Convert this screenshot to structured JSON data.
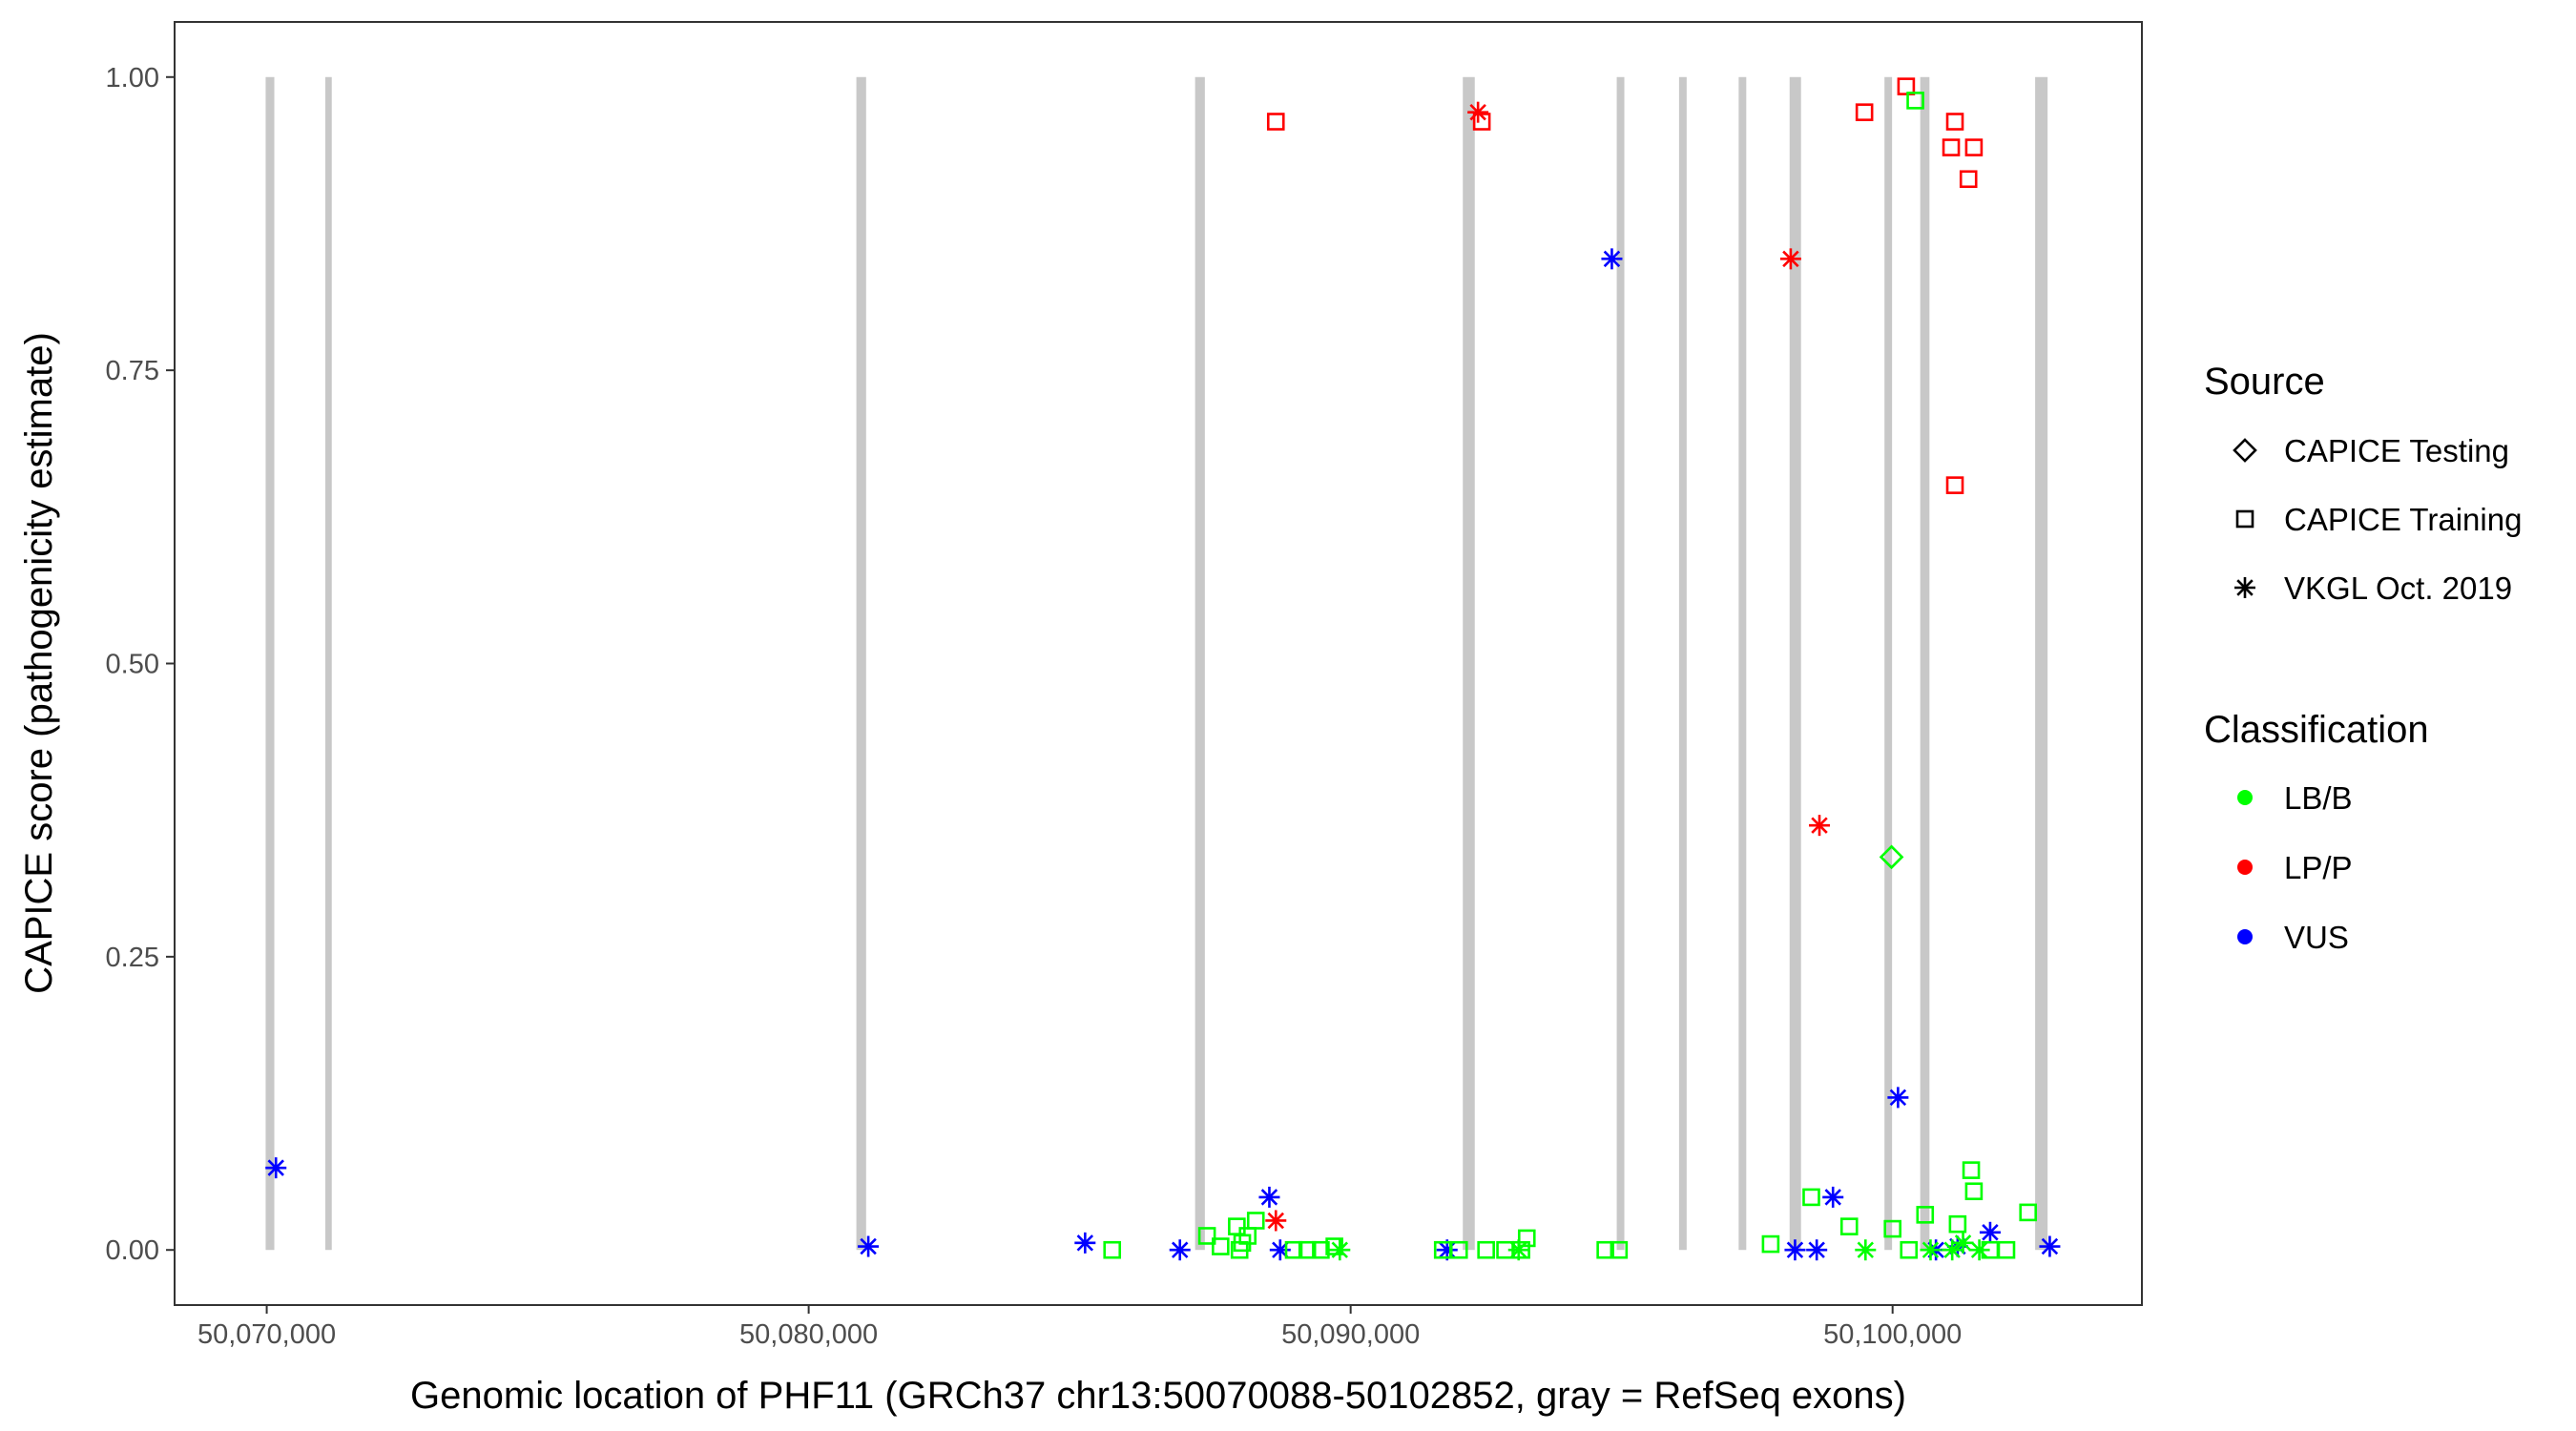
{
  "chart_data": {
    "type": "scatter",
    "title": "",
    "xlabel": "Genomic location of PHF11 (GRCh37 chr13:50070088-50102852, gray = RefSeq exons)",
    "ylabel": "CAPICE score (pathogenicity estimate)",
    "xlim": [
      50068300,
      50104600
    ],
    "ylim": [
      -0.047,
      1.047
    ],
    "x_ticks": [
      50070000,
      50080000,
      50090000,
      50100000
    ],
    "x_tick_labels": [
      "50,070,000",
      "50,080,000",
      "50,090,000",
      "50,100,000"
    ],
    "y_ticks": [
      0,
      0.25,
      0.5,
      0.75,
      1.0
    ],
    "y_tick_labels": [
      "0.00",
      "0.25",
      "0.50",
      "0.75",
      "1.00"
    ],
    "grid": false,
    "exons": [
      {
        "start": 50069980,
        "end": 50070140
      },
      {
        "start": 50071080,
        "end": 50071200
      },
      {
        "start": 50080880,
        "end": 50081060
      },
      {
        "start": 50087130,
        "end": 50087310
      },
      {
        "start": 50092070,
        "end": 50092290
      },
      {
        "start": 50094910,
        "end": 50095050
      },
      {
        "start": 50096060,
        "end": 50096200
      },
      {
        "start": 50097160,
        "end": 50097300
      },
      {
        "start": 50098100,
        "end": 50098310
      },
      {
        "start": 50099850,
        "end": 50099990
      },
      {
        "start": 50100510,
        "end": 50100680
      },
      {
        "start": 50102630,
        "end": 50102860
      }
    ],
    "legend": {
      "placement": "right",
      "source_title": "Source",
      "classification_title": "Classification",
      "source": [
        {
          "name": "CAPICE Testing",
          "shape": "diamond"
        },
        {
          "name": "CAPICE Training",
          "shape": "square"
        },
        {
          "name": "VKGL Oct. 2019",
          "shape": "asterisk"
        }
      ],
      "classification": [
        {
          "name": "LB/B",
          "color": "#00ff00"
        },
        {
          "name": "LP/P",
          "color": "#ff0000"
        },
        {
          "name": "VUS",
          "color": "#0000ff"
        }
      ]
    },
    "series": [
      {
        "source": "CAPICE Training",
        "classification": "LP/P",
        "shape": "square",
        "color": "#ff0000",
        "points": [
          [
            50088620,
            0.962
          ],
          [
            50092420,
            0.962
          ],
          [
            50099480,
            0.97
          ],
          [
            50100250,
            0.992
          ],
          [
            50101150,
            0.962
          ],
          [
            50101080,
            0.94
          ],
          [
            50101500,
            0.94
          ],
          [
            50101400,
            0.913
          ],
          [
            50101150,
            0.652
          ]
        ]
      },
      {
        "source": "VKGL Oct. 2019",
        "classification": "LP/P",
        "shape": "asterisk",
        "color": "#ff0000",
        "points": [
          [
            50092350,
            0.97
          ],
          [
            50098120,
            0.845
          ],
          [
            50098650,
            0.362
          ],
          [
            50088620,
            0.025
          ]
        ]
      },
      {
        "source": "VKGL Oct. 2019",
        "classification": "VUS",
        "shape": "asterisk",
        "color": "#0000ff",
        "points": [
          [
            50070170,
            0.07
          ],
          [
            50081100,
            0.003
          ],
          [
            50085100,
            0.006
          ],
          [
            50086850,
            0.0
          ],
          [
            50088500,
            0.045
          ],
          [
            50088700,
            0.0
          ],
          [
            50094820,
            0.845
          ],
          [
            50091780,
            0.0
          ],
          [
            50098200,
            0.0
          ],
          [
            50098600,
            0.0
          ],
          [
            50098900,
            0.045
          ],
          [
            50100100,
            0.13
          ],
          [
            50100800,
            0.0
          ],
          [
            50101200,
            0.003
          ],
          [
            50101800,
            0.015
          ],
          [
            50102900,
            0.003
          ]
        ]
      },
      {
        "source": "CAPICE Training",
        "classification": "LB/B",
        "shape": "square",
        "color": "#00ff00",
        "points": [
          [
            50100420,
            0.98
          ],
          [
            50085600,
            0.0
          ],
          [
            50087350,
            0.012
          ],
          [
            50087600,
            0.003
          ],
          [
            50087900,
            0.02
          ],
          [
            50088000,
            0.006
          ],
          [
            50088100,
            0.012
          ],
          [
            50087950,
            0.0
          ],
          [
            50088250,
            0.025
          ],
          [
            50088950,
            0.0
          ],
          [
            50089200,
            0.0
          ],
          [
            50089450,
            0.0
          ],
          [
            50089700,
            0.003
          ],
          [
            50091700,
            0.0
          ],
          [
            50092000,
            0.0
          ],
          [
            50092500,
            0.0
          ],
          [
            50092850,
            0.0
          ],
          [
            50093250,
            0.01
          ],
          [
            50093150,
            0.0
          ],
          [
            50094700,
            0.0
          ],
          [
            50094950,
            0.0
          ],
          [
            50097750,
            0.005
          ],
          [
            50098500,
            0.045
          ],
          [
            50099200,
            0.02
          ],
          [
            50100000,
            0.018
          ],
          [
            50100300,
            0.0
          ],
          [
            50100600,
            0.03
          ],
          [
            50101200,
            0.022
          ],
          [
            50101450,
            0.068
          ],
          [
            50101500,
            0.05
          ],
          [
            50101800,
            0.0
          ],
          [
            50102100,
            0.0
          ],
          [
            50102500,
            0.032
          ]
        ]
      },
      {
        "source": "VKGL Oct. 2019",
        "classification": "LB/B",
        "shape": "asterisk",
        "color": "#00ff00",
        "points": [
          [
            50089800,
            0.0
          ],
          [
            50093100,
            0.0
          ],
          [
            50099500,
            0.0
          ],
          [
            50100700,
            0.0
          ],
          [
            50101100,
            0.0
          ],
          [
            50101300,
            0.006
          ],
          [
            50101600,
            0.0
          ]
        ]
      },
      {
        "source": "CAPICE Testing",
        "classification": "LB/B",
        "shape": "diamond",
        "color": "#00ff00",
        "points": [
          [
            50099980,
            0.335
          ]
        ]
      }
    ]
  }
}
